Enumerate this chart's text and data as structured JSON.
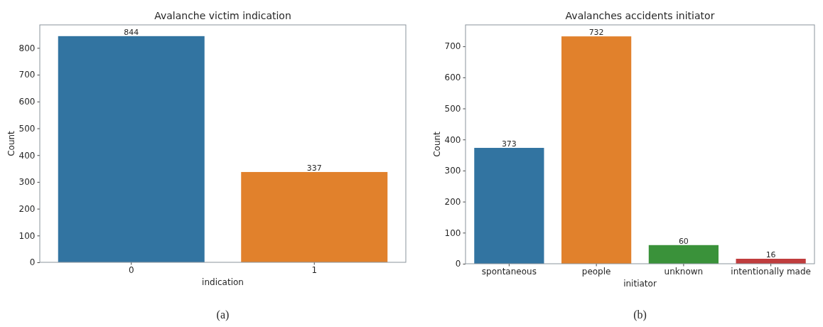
{
  "chart_data": [
    {
      "type": "bar",
      "title": "Avalanche victim indication",
      "xlabel": "indication",
      "ylabel": "Count",
      "categories": [
        "0",
        "1"
      ],
      "values": [
        844,
        337
      ],
      "colors": [
        "#3274a1",
        "#e1812c"
      ],
      "ylim": [
        0,
        886
      ],
      "yticks": [
        0,
        100,
        200,
        300,
        400,
        500,
        600,
        700,
        800
      ],
      "data_labels": true,
      "annotations": [
        "(a)"
      ]
    },
    {
      "type": "bar",
      "title": "Avalanches accidents initiator",
      "xlabel": "initiator",
      "ylabel": "Count",
      "categories": [
        "spontaneous",
        "people",
        "unknown",
        "intentionally made"
      ],
      "values": [
        373,
        732,
        60,
        16
      ],
      "colors": [
        "#3274a1",
        "#e1812c",
        "#3a923a",
        "#c03d3e"
      ],
      "ylim": [
        0,
        769
      ],
      "yticks": [
        0,
        100,
        200,
        300,
        400,
        500,
        600,
        700
      ],
      "data_labels": true,
      "annotations": [
        "(b)"
      ]
    }
  ]
}
